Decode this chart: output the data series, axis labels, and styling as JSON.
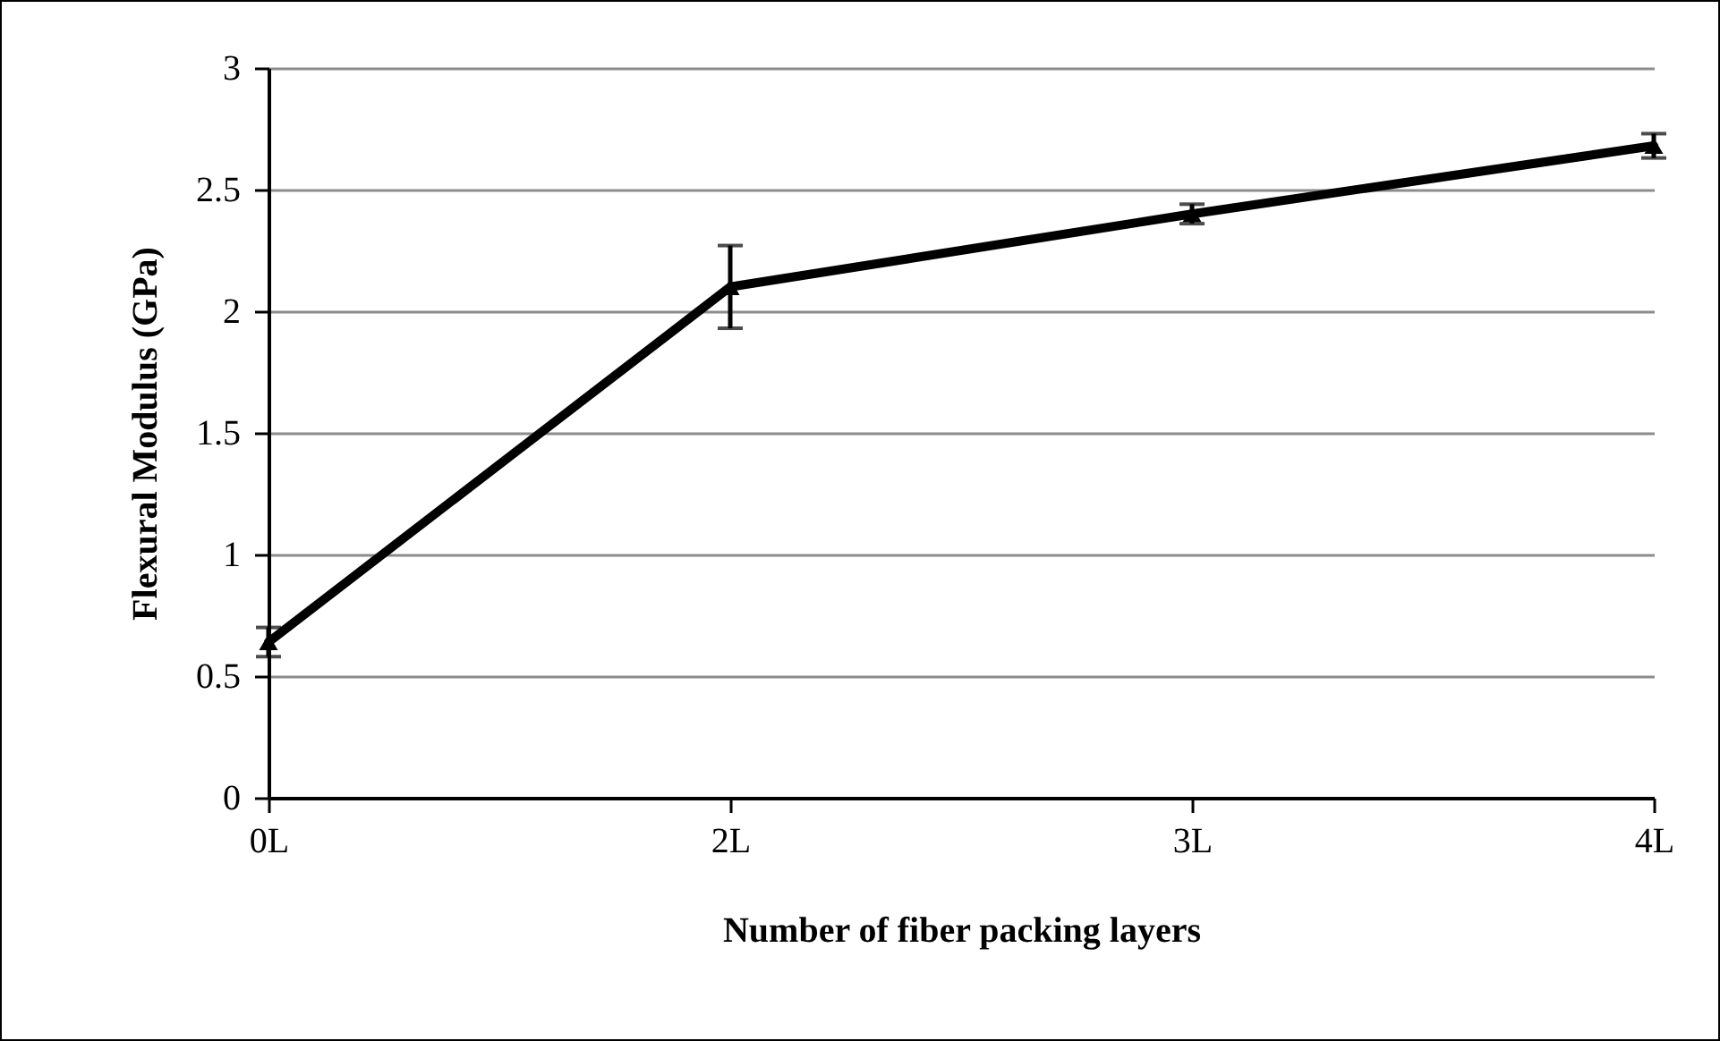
{
  "chart_data": {
    "type": "line",
    "xlabel": "Number of fiber packing layers",
    "ylabel": "Flexural Modulus (GPa)",
    "categories": [
      "0L",
      "2L",
      "3L",
      "4L"
    ],
    "series": [
      {
        "color": "#000000",
        "values": [
          0.64,
          2.1,
          2.4,
          2.68
        ],
        "errors": [
          0.06,
          0.17,
          0.04,
          0.05
        ]
      }
    ],
    "ylim": [
      0,
      3
    ],
    "yticks": [
      0,
      0.5,
      1,
      1.5,
      2,
      2.5,
      3
    ],
    "grid": "y",
    "marker": "triangle",
    "line_style": "solid"
  }
}
